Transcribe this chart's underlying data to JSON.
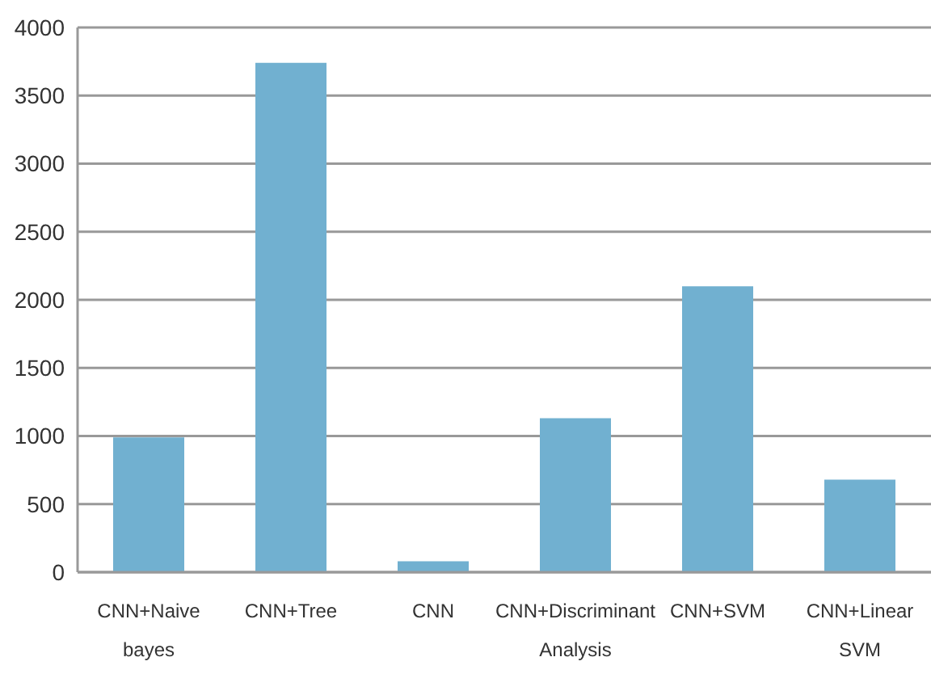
{
  "chart_data": {
    "type": "bar",
    "categories": [
      "CNN+Naive bayes",
      "CNN+Tree",
      "CNN",
      "CNN+Discriminant Analysis",
      "CNN+SVM",
      "CNN+Linear SVM"
    ],
    "values": [
      990,
      3740,
      80,
      1130,
      2100,
      680
    ],
    "color": "#71b0d0",
    "ylim": [
      0,
      4000
    ],
    "yticks": [
      0,
      500,
      1000,
      1500,
      2000,
      2500,
      3000,
      3500,
      4000
    ],
    "grid": "y",
    "legend": false
  }
}
